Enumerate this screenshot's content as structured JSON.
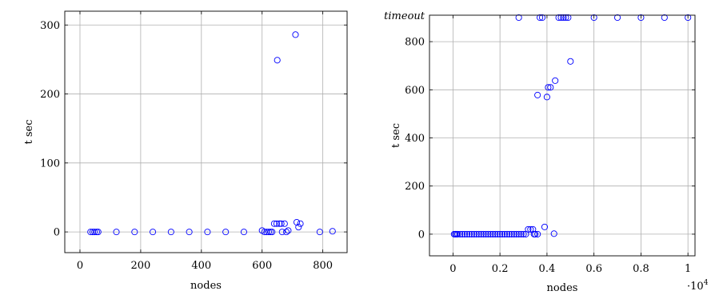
{
  "chart_data": [
    {
      "type": "scatter",
      "xlabel": "nodes",
      "ylabel": "t sec",
      "xlim": [
        -50,
        880
      ],
      "ylim": [
        -30,
        320
      ],
      "xticks": [
        0,
        200,
        400,
        600,
        800
      ],
      "yticks": [
        0,
        100,
        200,
        300
      ],
      "grid": true,
      "color": "#0000ff",
      "points": [
        [
          35,
          0
        ],
        [
          42,
          0
        ],
        [
          48,
          0
        ],
        [
          55,
          0
        ],
        [
          60,
          0
        ],
        [
          120,
          0
        ],
        [
          180,
          0
        ],
        [
          240,
          0
        ],
        [
          300,
          0
        ],
        [
          360,
          0
        ],
        [
          420,
          0
        ],
        [
          480,
          0
        ],
        [
          540,
          0
        ],
        [
          600,
          2
        ],
        [
          608,
          0
        ],
        [
          615,
          0
        ],
        [
          622,
          0
        ],
        [
          628,
          0
        ],
        [
          633,
          0
        ],
        [
          640,
          12
        ],
        [
          648,
          12
        ],
        [
          650,
          249
        ],
        [
          657,
          12
        ],
        [
          663,
          12
        ],
        [
          666,
          0
        ],
        [
          674,
          12
        ],
        [
          680,
          0
        ],
        [
          686,
          2
        ],
        [
          710,
          286
        ],
        [
          714,
          14
        ],
        [
          720,
          7
        ],
        [
          726,
          12
        ],
        [
          790,
          0
        ],
        [
          832,
          1
        ]
      ]
    },
    {
      "type": "scatter",
      "xlabel": "nodes",
      "ylabel": "t sec",
      "x_multiplier_label": "·10",
      "x_multiplier_exp": "4",
      "xlim": [
        -0.1,
        1.03
      ],
      "ylim": [
        -90,
        910
      ],
      "xticks": [
        0,
        0.2,
        0.4,
        0.6,
        0.8,
        1
      ],
      "yticks": [
        0,
        200,
        400,
        600,
        800
      ],
      "ytick_extra_label": "timeout",
      "grid": true,
      "color": "#0000ff",
      "points": [
        [
          0.005,
          0
        ],
        [
          0.01,
          0
        ],
        [
          0.015,
          0
        ],
        [
          0.02,
          0
        ],
        [
          0.03,
          0
        ],
        [
          0.04,
          0
        ],
        [
          0.05,
          0
        ],
        [
          0.06,
          0
        ],
        [
          0.07,
          0
        ],
        [
          0.08,
          0
        ],
        [
          0.09,
          0
        ],
        [
          0.1,
          0
        ],
        [
          0.11,
          0
        ],
        [
          0.12,
          0
        ],
        [
          0.13,
          0
        ],
        [
          0.14,
          0
        ],
        [
          0.15,
          0
        ],
        [
          0.16,
          0
        ],
        [
          0.17,
          0
        ],
        [
          0.18,
          0
        ],
        [
          0.19,
          0
        ],
        [
          0.2,
          0
        ],
        [
          0.21,
          0
        ],
        [
          0.22,
          0
        ],
        [
          0.23,
          0
        ],
        [
          0.24,
          0
        ],
        [
          0.25,
          0
        ],
        [
          0.26,
          0
        ],
        [
          0.27,
          0
        ],
        [
          0.28,
          0
        ],
        [
          0.29,
          0
        ],
        [
          0.3,
          0
        ],
        [
          0.31,
          0
        ],
        [
          0.32,
          20
        ],
        [
          0.33,
          20
        ],
        [
          0.34,
          20
        ],
        [
          0.345,
          0
        ],
        [
          0.35,
          0
        ],
        [
          0.36,
          0
        ],
        [
          0.39,
          30
        ],
        [
          0.43,
          2
        ],
        [
          0.36,
          578
        ],
        [
          0.4,
          570
        ],
        [
          0.405,
          610
        ],
        [
          0.415,
          610
        ],
        [
          0.435,
          638
        ],
        [
          0.5,
          718
        ],
        [
          0.28,
          900
        ],
        [
          0.37,
          900
        ],
        [
          0.38,
          900
        ],
        [
          0.45,
          900
        ],
        [
          0.46,
          900
        ],
        [
          0.47,
          900
        ],
        [
          0.48,
          900
        ],
        [
          0.49,
          900
        ],
        [
          0.6,
          900
        ],
        [
          0.7,
          900
        ],
        [
          0.8,
          900
        ],
        [
          0.9,
          900
        ],
        [
          1.0,
          900
        ]
      ]
    }
  ]
}
